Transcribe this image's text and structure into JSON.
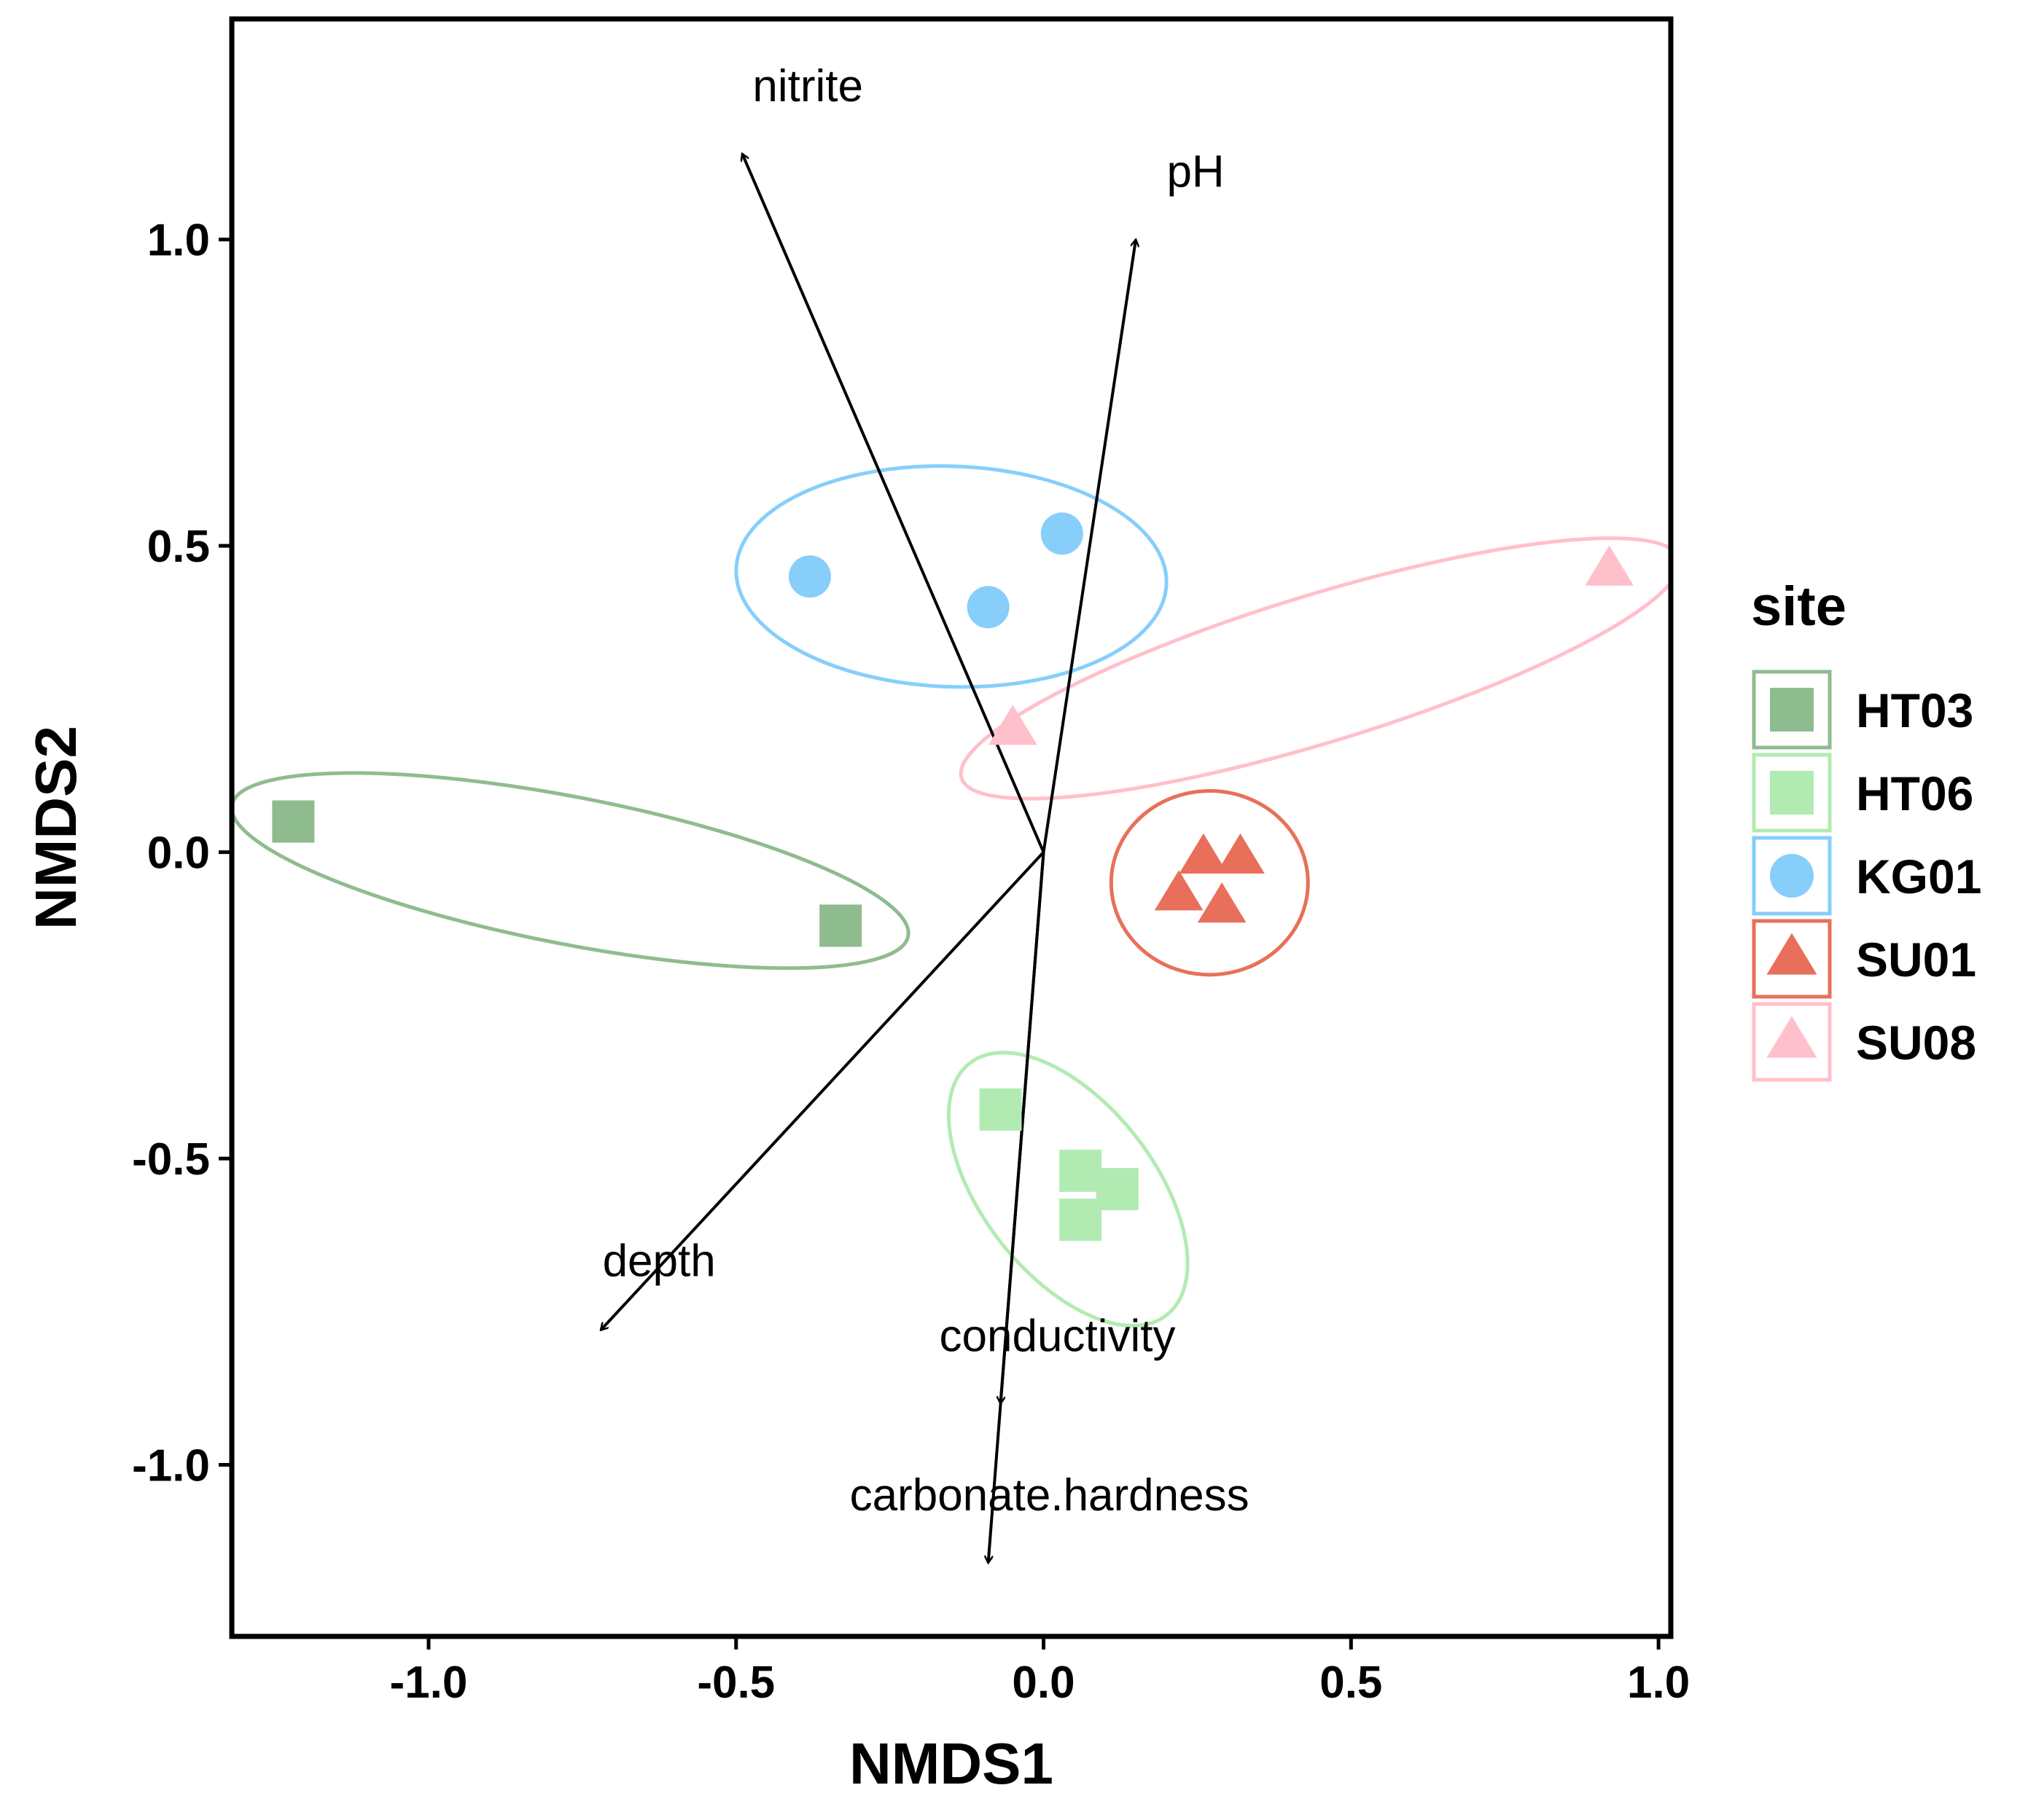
{
  "chart_data": {
    "type": "scatter",
    "title": "",
    "xlabel": "NMDS1",
    "ylabel": "NMDS2",
    "xlim": [
      -1.32,
      1.02
    ],
    "ylim": [
      -1.28,
      1.36
    ],
    "xticks": [
      -1.0,
      -0.5,
      0.0,
      0.5,
      1.0
    ],
    "yticks": [
      -1.0,
      -0.5,
      0.0,
      0.5,
      1.0
    ],
    "xtick_labels": [
      "-1.0",
      "-0.5",
      "0.0",
      "0.5",
      "1.0"
    ],
    "ytick_labels": [
      "-1.0",
      "-0.5",
      "0.0",
      "0.5",
      "1.0"
    ],
    "grid": false,
    "legend_title": "site",
    "legend_position": "right",
    "series": [
      {
        "name": "HT03",
        "color": "#8FBC8F",
        "shape": "square",
        "points": [
          [
            -1.22,
            0.05
          ],
          [
            -0.33,
            -0.12
          ]
        ],
        "ellipse": {
          "center": [
            -0.77,
            -0.03
          ],
          "rx": 0.56,
          "ry": 0.12,
          "angle_deg": -11
        }
      },
      {
        "name": "HT06",
        "color": "#B2EBB2",
        "shape": "square",
        "points": [
          [
            -0.07,
            -0.42
          ],
          [
            0.06,
            -0.52
          ],
          [
            0.12,
            -0.55
          ],
          [
            0.06,
            -0.6
          ]
        ],
        "ellipse": {
          "center": [
            0.04,
            -0.55
          ],
          "rx": 0.26,
          "ry": 0.14,
          "angle_deg": -52
        }
      },
      {
        "name": "KG01",
        "color": "#87CEFA",
        "shape": "circle",
        "points": [
          [
            -0.38,
            0.45
          ],
          [
            -0.09,
            0.4
          ],
          [
            0.03,
            0.52
          ]
        ],
        "ellipse": {
          "center": [
            -0.15,
            0.45
          ],
          "rx": 0.35,
          "ry": 0.18,
          "angle_deg": -2
        }
      },
      {
        "name": "SU01",
        "color": "#E8705A",
        "shape": "triangle",
        "points": [
          [
            0.26,
            -0.01
          ],
          [
            0.32,
            -0.01
          ],
          [
            0.22,
            -0.07
          ],
          [
            0.29,
            -0.09
          ]
        ],
        "ellipse": {
          "center": [
            0.27,
            -0.05
          ],
          "rx": 0.16,
          "ry": 0.15,
          "angle_deg": 0
        }
      },
      {
        "name": "SU08",
        "color": "#FFC0CB",
        "shape": "triangle",
        "points": [
          [
            0.92,
            0.46
          ],
          [
            -0.05,
            0.2
          ]
        ],
        "ellipse": {
          "center": [
            0.45,
            0.3
          ],
          "rx": 0.61,
          "ry": 0.12,
          "angle_deg": 17
        }
      }
    ],
    "vectors": [
      {
        "label": "nitrite",
        "end": [
          -0.49,
          1.14
        ]
      },
      {
        "label": "pH",
        "end": [
          0.15,
          1.0
        ]
      },
      {
        "label": "depth",
        "end": [
          -0.72,
          -0.78
        ]
      },
      {
        "label": "conductivity",
        "end": [
          -0.07,
          -0.9
        ]
      },
      {
        "label": "carbonate.hardness",
        "end": [
          -0.09,
          -1.16
        ]
      }
    ]
  }
}
